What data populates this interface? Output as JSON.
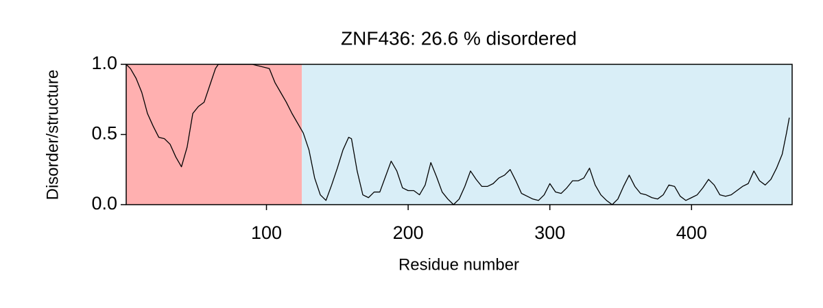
{
  "chart_data": {
    "type": "line",
    "title": "ZNF436: 26.6 % disordered",
    "xlabel": "Residue number",
    "ylabel": "Disorder/structure",
    "xlim": [
      1,
      471
    ],
    "ylim": [
      0,
      1
    ],
    "xticks": [
      100,
      200,
      300,
      400
    ],
    "yticks": [
      {
        "value": 0,
        "label": "0.0"
      },
      {
        "value": 0.5,
        "label": "0.5"
      },
      {
        "value": 1,
        "label": "1.0"
      }
    ],
    "regions": [
      {
        "start": 1,
        "end": 125,
        "color": "#ffb0b0"
      },
      {
        "start": 125,
        "end": 471,
        "color": "#d9eef7"
      }
    ],
    "color": "#000000",
    "x": [
      1,
      4,
      8,
      12,
      16,
      20,
      24,
      28,
      32,
      36,
      40,
      44,
      48,
      52,
      56,
      60,
      64,
      66,
      90,
      102,
      106,
      110,
      114,
      118,
      122,
      126,
      130,
      134,
      138,
      142,
      146,
      150,
      154,
      158,
      160,
      164,
      168,
      172,
      176,
      180,
      184,
      188,
      192,
      196,
      200,
      204,
      208,
      212,
      216,
      220,
      224,
      228,
      232,
      236,
      240,
      244,
      248,
      252,
      256,
      260,
      264,
      268,
      272,
      276,
      280,
      284,
      288,
      292,
      296,
      300,
      304,
      308,
      312,
      316,
      320,
      324,
      328,
      332,
      336,
      340,
      344,
      348,
      352,
      356,
      360,
      364,
      368,
      372,
      376,
      380,
      384,
      388,
      392,
      396,
      400,
      404,
      408,
      412,
      416,
      420,
      424,
      428,
      432,
      436,
      440,
      444,
      448,
      452,
      456,
      460,
      464,
      467,
      469
    ],
    "values": [
      1.0,
      0.97,
      0.9,
      0.8,
      0.65,
      0.56,
      0.48,
      0.47,
      0.43,
      0.34,
      0.27,
      0.41,
      0.65,
      0.7,
      0.73,
      0.85,
      0.97,
      1.0,
      1.0,
      0.97,
      0.87,
      0.8,
      0.73,
      0.65,
      0.58,
      0.51,
      0.39,
      0.19,
      0.07,
      0.03,
      0.14,
      0.26,
      0.39,
      0.48,
      0.47,
      0.24,
      0.07,
      0.05,
      0.09,
      0.09,
      0.2,
      0.31,
      0.24,
      0.12,
      0.1,
      0.1,
      0.07,
      0.14,
      0.3,
      0.2,
      0.09,
      0.04,
      0.0,
      0.04,
      0.13,
      0.24,
      0.18,
      0.13,
      0.13,
      0.15,
      0.19,
      0.21,
      0.25,
      0.17,
      0.08,
      0.06,
      0.04,
      0.03,
      0.07,
      0.15,
      0.09,
      0.08,
      0.12,
      0.17,
      0.17,
      0.19,
      0.26,
      0.14,
      0.07,
      0.03,
      0.0,
      0.04,
      0.13,
      0.21,
      0.13,
      0.08,
      0.07,
      0.05,
      0.04,
      0.07,
      0.14,
      0.13,
      0.06,
      0.03,
      0.05,
      0.07,
      0.12,
      0.18,
      0.14,
      0.07,
      0.06,
      0.07,
      0.1,
      0.13,
      0.15,
      0.24,
      0.17,
      0.14,
      0.18,
      0.26,
      0.36,
      0.51,
      0.62
    ]
  }
}
